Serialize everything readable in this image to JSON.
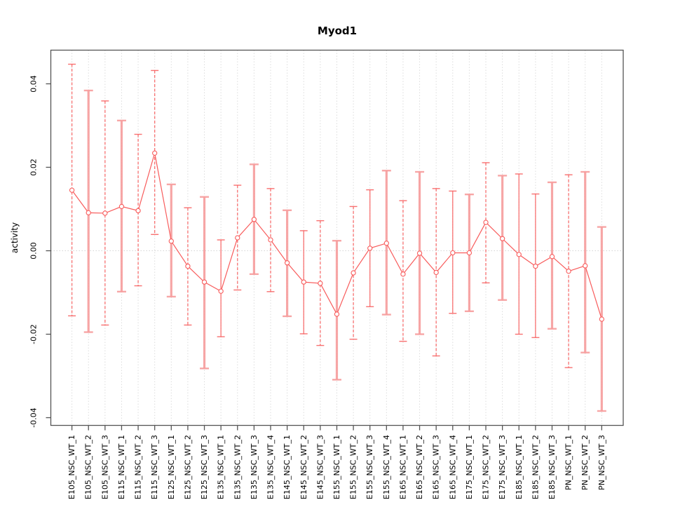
{
  "chart_data": {
    "type": "line",
    "subtype": "errorbar",
    "title": "Myod1",
    "xlabel": "",
    "ylabel": "activity",
    "legend": "none",
    "grid": "vertical dotted line per category, dotted horizontal line at y=0",
    "ylim": [
      -0.042,
      0.048
    ],
    "yticks": [
      -0.04,
      -0.02,
      0,
      0.02,
      0.04
    ],
    "ytick_labels": [
      "-0.04",
      "-0.02",
      "0.00",
      "0.02",
      "0.04"
    ],
    "categories": [
      "E105_NSC_WT_1",
      "E105_NSC_WT_2",
      "E105_NSC_WT_3",
      "E115_NSC_WT_1",
      "E115_NSC_WT_2",
      "E115_NSC_WT_3",
      "E125_NSC_WT_1",
      "E125_NSC_WT_2",
      "E125_NSC_WT_3",
      "E135_NSC_WT_1",
      "E135_NSC_WT_2",
      "E135_NSC_WT_3",
      "E135_NSC_WT_4",
      "E145_NSC_WT_1",
      "E145_NSC_WT_2",
      "E145_NSC_WT_3",
      "E155_NSC_WT_1",
      "E155_NSC_WT_2",
      "E155_NSC_WT_3",
      "E155_NSC_WT_4",
      "E165_NSC_WT_1",
      "E165_NSC_WT_2",
      "E165_NSC_WT_3",
      "E165_NSC_WT_4",
      "E175_NSC_WT_1",
      "E175_NSC_WT_2",
      "E175_NSC_WT_3",
      "E185_NSC_WT_1",
      "E185_NSC_WT_2",
      "E185_NSC_WT_3",
      "PN_NSC_WT_1",
      "PN_NSC_WT_2",
      "PN_NSC_WT_3"
    ],
    "series": [
      {
        "name": "activity",
        "values": [
          0.0145,
          0.0091,
          0.009,
          0.0106,
          0.0096,
          0.0234,
          0.0023,
          -0.0037,
          -0.0075,
          -0.0097,
          0.0031,
          0.0075,
          0.0026,
          -0.0029,
          -0.0075,
          -0.0078,
          -0.0152,
          -0.0053,
          0.0006,
          0.0018,
          -0.0056,
          -0.0006,
          -0.0052,
          -0.0005,
          -0.0005,
          0.0068,
          0.0029,
          -0.0009,
          -0.0037,
          -0.0014,
          -0.0049,
          -0.0036,
          -0.0164
        ],
        "lower": [
          -0.0156,
          -0.0195,
          -0.0178,
          -0.0098,
          -0.0084,
          0.0039,
          -0.011,
          -0.0178,
          -0.0282,
          -0.0206,
          -0.0094,
          -0.0056,
          -0.0098,
          -0.0157,
          -0.0199,
          -0.0227,
          -0.0309,
          -0.0212,
          -0.0134,
          -0.0153,
          -0.0217,
          -0.02,
          -0.0252,
          -0.015,
          -0.0145,
          -0.0077,
          -0.0118,
          -0.02,
          -0.0208,
          -0.0187,
          -0.028,
          -0.0244,
          -0.0384
        ],
        "upper": [
          0.0447,
          0.0384,
          0.0359,
          0.0312,
          0.0279,
          0.0432,
          0.0159,
          0.0103,
          0.0129,
          0.0026,
          0.0157,
          0.0207,
          0.0149,
          0.0097,
          0.0048,
          0.0072,
          0.0024,
          0.0106,
          0.0146,
          0.0192,
          0.012,
          0.0189,
          0.0149,
          0.0143,
          0.0135,
          0.0211,
          0.018,
          0.0184,
          0.0136,
          0.0164,
          0.0182,
          0.0189,
          0.0057
        ]
      }
    ],
    "point_styles": [
      "dashed",
      "thick",
      "dashed",
      "thick",
      "dashed",
      "dashed",
      "thick",
      "dashed",
      "thick",
      "solid",
      "dashed",
      "thick",
      "dashed",
      "thick",
      "solid",
      "dashed",
      "thick",
      "dashed",
      "solid",
      "thick",
      "dashed",
      "thick",
      "dashed",
      "solid",
      "thick",
      "dashed",
      "thick",
      "solid",
      "solid",
      "thick",
      "dashed",
      "thick",
      "thick"
    ],
    "colors": {
      "series_red": "#f85c5c",
      "errorbar_thin": "#f86262",
      "errorbar_thick": "#f79d9d",
      "point_fill": "#ffffff",
      "grid": "#dcdcdc",
      "zero_line": "#d4d4d4",
      "axis_box": "#545454",
      "text": "#000000",
      "background": "#ffffff"
    }
  }
}
